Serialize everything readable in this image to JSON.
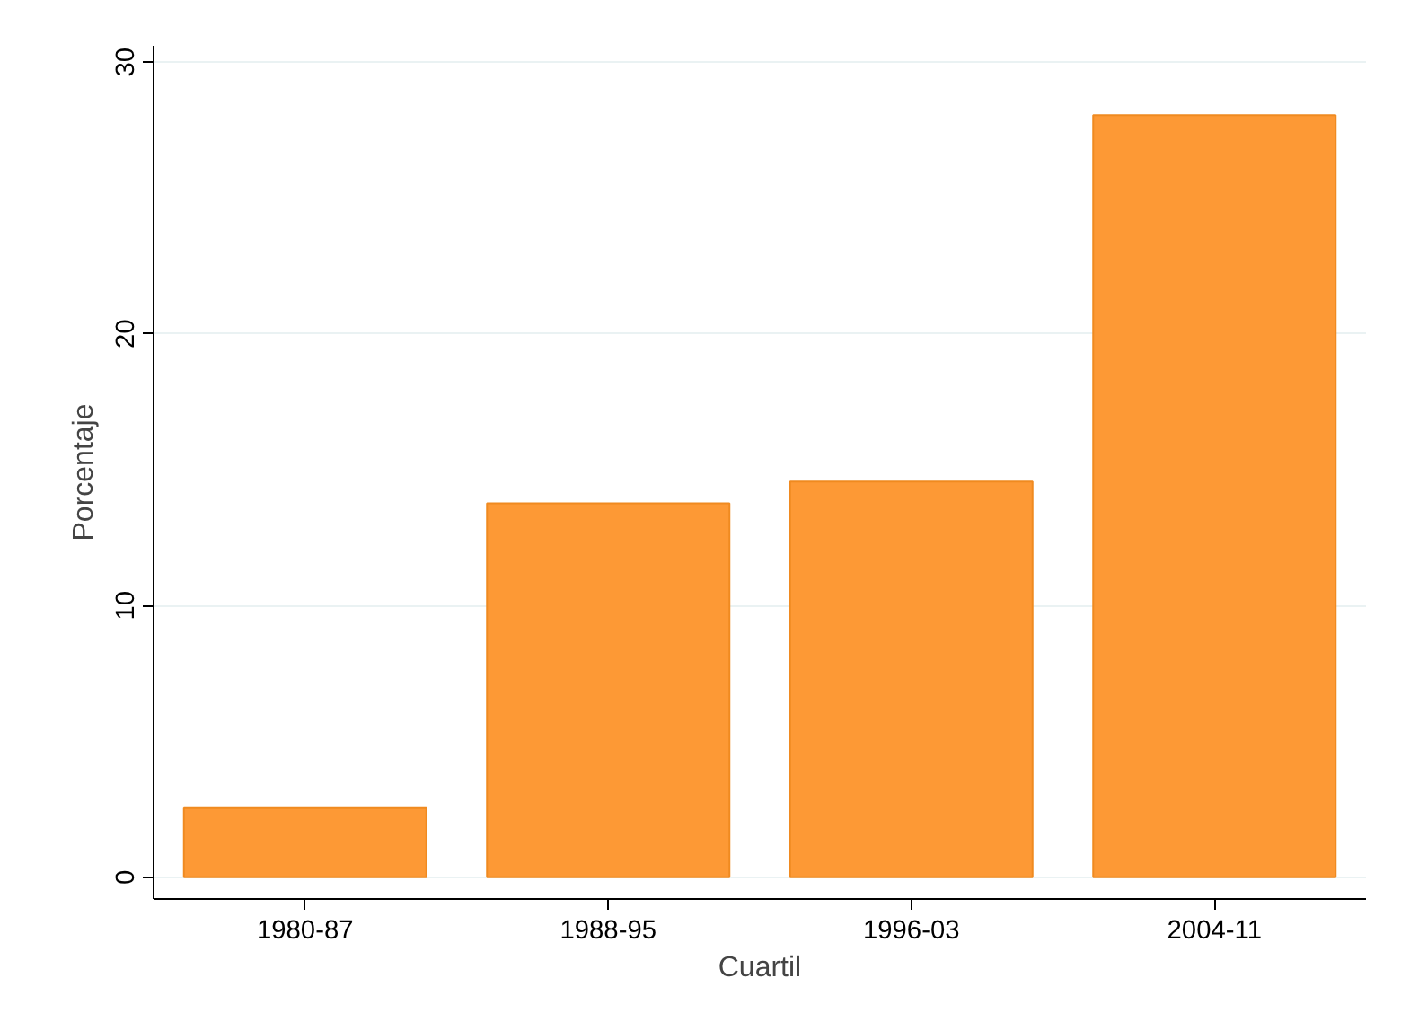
{
  "chart_data": {
    "type": "bar",
    "xlabel": "Cuartil",
    "ylabel": "Porcentaje",
    "categories": [
      "1980-87",
      "1988-95",
      "1996-03",
      "2004-11"
    ],
    "values": [
      2.55,
      13.76,
      14.56,
      28.05
    ],
    "color": "#fd9935",
    "ylim": [
      -0.8,
      30.6
    ],
    "yticks": [
      0,
      10,
      20,
      30
    ],
    "grid": "y"
  }
}
